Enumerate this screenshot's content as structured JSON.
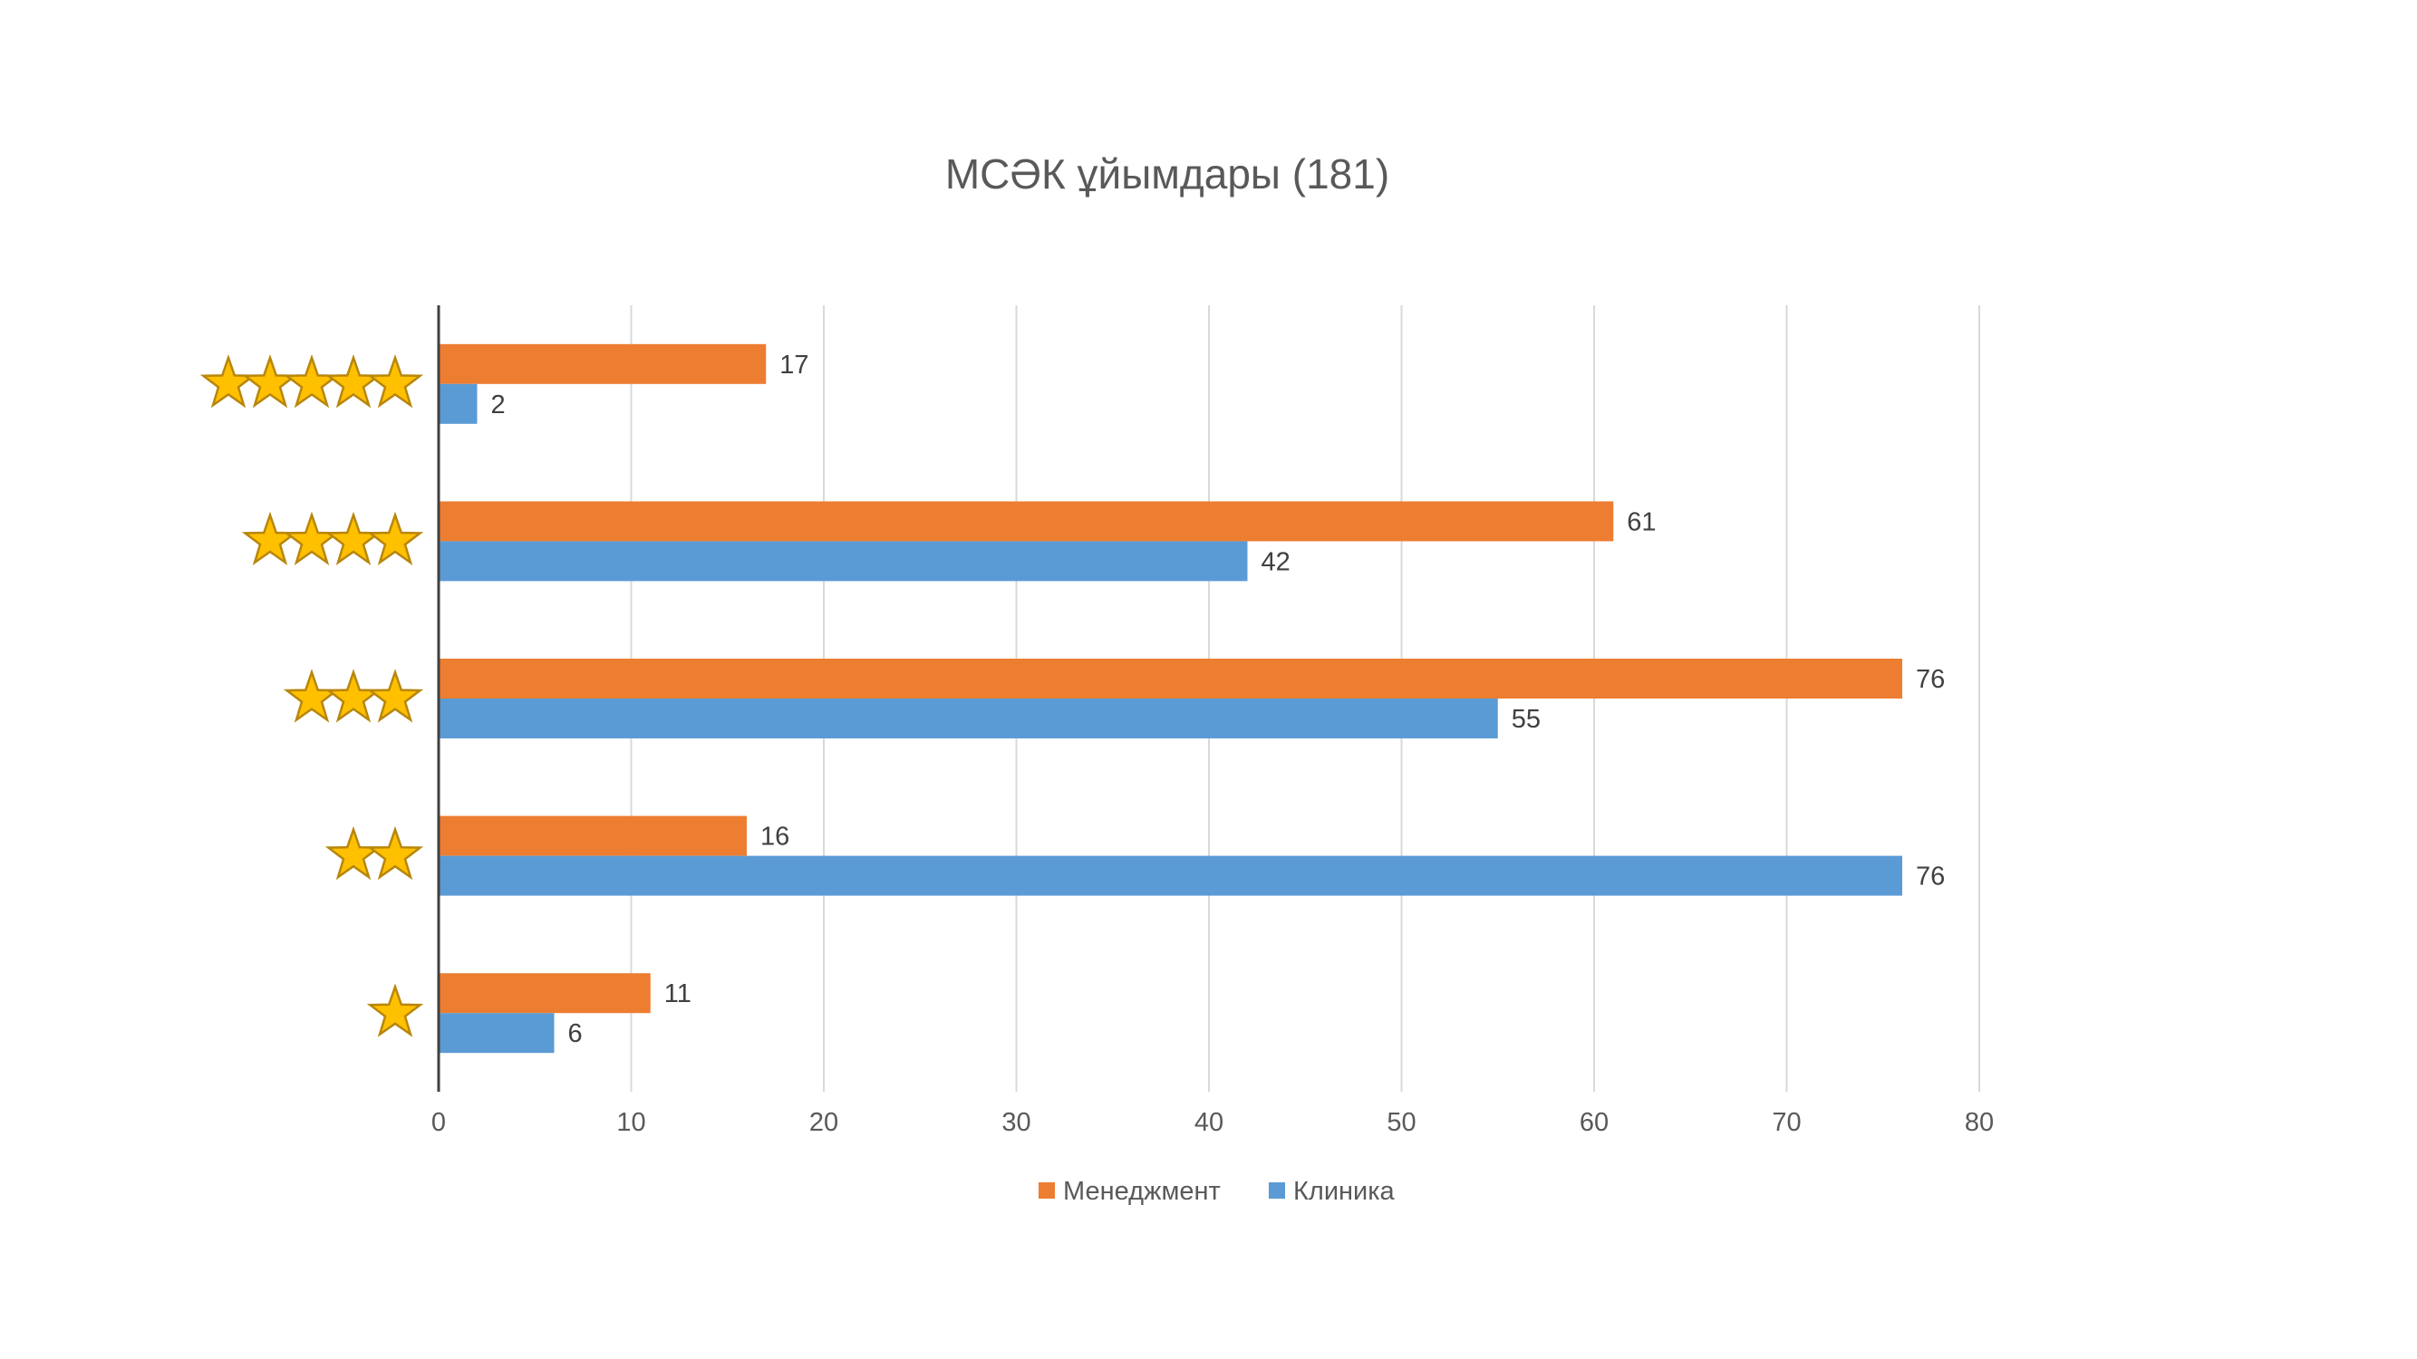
{
  "chart_data": {
    "type": "bar",
    "orientation": "horizontal",
    "title": "МСӘК ұйымдары (181)",
    "categories": [
      "1 star",
      "2 stars",
      "3 stars",
      "4 stars",
      "5 stars"
    ],
    "category_icons": [
      "star-icon",
      "star-icon",
      "star-icon",
      "star-icon",
      "star-icon"
    ],
    "category_star_counts": [
      1,
      2,
      3,
      4,
      5
    ],
    "series": [
      {
        "name": "Менеджмент",
        "color": "#ED7D31",
        "values": [
          11,
          16,
          76,
          61,
          17
        ]
      },
      {
        "name": "Клиника",
        "color": "#5B9BD5",
        "values": [
          6,
          76,
          55,
          42,
          2
        ]
      }
    ],
    "xlim": [
      0,
      80
    ],
    "xticks": [
      "0",
      "10",
      "20",
      "30",
      "40",
      "50",
      "60",
      "70",
      "80"
    ],
    "xlabel": "",
    "ylabel": "",
    "grid": true,
    "legend": "bottom",
    "data_labels": true
  },
  "colors": {
    "star_fill": "#FFC000",
    "star_stroke": "#B8860B",
    "grid": "#D9D9D9",
    "axis": "#404040"
  }
}
